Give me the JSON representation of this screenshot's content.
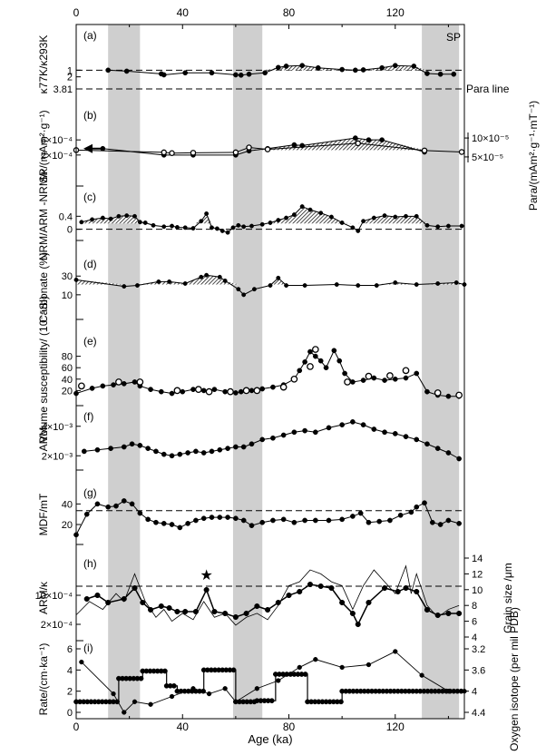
{
  "figure": {
    "x_axis_label": "Age (ka)",
    "x_ticks": [
      "0",
      "40",
      "80",
      "120"
    ],
    "x_range": [
      0,
      146
    ]
  },
  "shaded_intervals": [
    [
      12,
      24
    ],
    [
      59,
      70
    ],
    [
      130,
      144
    ]
  ],
  "chart_data": [
    {
      "id": "a",
      "type": "line",
      "panel_label": "(a)",
      "ylabel": "κ77K/κ293K",
      "yticks": [
        "1",
        "2"
      ],
      "ylim": [
        0.0,
        3.0
      ],
      "y_inverted": true,
      "corner_label": "SP",
      "reference_lines": [
        {
          "value": 1.0,
          "style": "dashed"
        }
      ],
      "extra_tick": {
        "label": "3.81",
        "value": 3.81,
        "note": "Para line"
      },
      "x": [
        12,
        19,
        32,
        33,
        41,
        51,
        60,
        62,
        65,
        71,
        76,
        79,
        85,
        91,
        100,
        105,
        108,
        115,
        120,
        127,
        132,
        137,
        142
      ],
      "values": [
        1.0,
        1.15,
        1.55,
        1.7,
        1.4,
        1.4,
        1.7,
        1.75,
        1.6,
        1.4,
        0.6,
        0.4,
        0.3,
        0.65,
        0.9,
        1.0,
        0.95,
        0.65,
        0.3,
        0.4,
        1.5,
        1.6,
        1.6
      ]
    },
    {
      "id": "b",
      "type": "line",
      "panel_label": "(b)",
      "ylabel": "SP/(mAm²·g⁻¹)",
      "yticks": [
        "6×10⁻⁴",
        "2×10⁻⁴"
      ],
      "ylim": [
        0.0001,
        0.0007
      ],
      "right_ylabel": "Para/(mAm²·g⁻¹·mT⁻¹)",
      "right_yticks": [
        "10×10⁻⁵",
        "5×10⁻⁵"
      ],
      "right_ylim": [
        4.5e-05,
        0.000105
      ],
      "series": [
        {
          "name": "SP",
          "x": [
            10,
            33,
            44,
            60,
            65,
            72,
            82,
            85,
            105,
            110,
            115,
            131
          ],
          "values": [
            0.00037,
            0.0002,
            0.0002,
            0.0002,
            0.00031,
            0.00037,
            0.00047,
            0.00045,
            0.00065,
            0.0006,
            0.0006,
            0.00028
          ]
        },
        {
          "name": "Para",
          "x": [
            0,
            33,
            36,
            44,
            60,
            65,
            72,
            106,
            131,
            145
          ],
          "values": [
            6.8e-05,
            6.2e-05,
            6e-05,
            6.1e-05,
            6.2e-05,
            7.5e-05,
            7e-05,
            8.6e-05,
            6.7e-05,
            6.3e-05
          ]
        }
      ]
    },
    {
      "id": "c",
      "type": "line",
      "panel_label": "(c)",
      "ylabel": "NRM/ARM -NRM/κ",
      "yticks": [
        "0.4",
        "0"
      ],
      "ylim": [
        -0.15,
        0.8
      ],
      "reference_lines": [
        {
          "value": 0.0,
          "style": "dashed"
        }
      ],
      "x": [
        2,
        6,
        10,
        13,
        16,
        19,
        22,
        24,
        26,
        29,
        33,
        36,
        38,
        41,
        44,
        47,
        49,
        51,
        53,
        55,
        57,
        59,
        61,
        63,
        66,
        70,
        73,
        76,
        79,
        82,
        85,
        88,
        92,
        96,
        100,
        104,
        106,
        108,
        112,
        116,
        120,
        124,
        128,
        132,
        136,
        140,
        145
      ],
      "values": [
        0.22,
        0.3,
        0.35,
        0.32,
        0.4,
        0.42,
        0.4,
        0.22,
        0.2,
        0.12,
        0.08,
        0.1,
        0.06,
        0.05,
        0.03,
        0.25,
        0.48,
        0.05,
        0.02,
        -0.05,
        -0.1,
        0.05,
        0.12,
        0.08,
        0.1,
        0.15,
        0.2,
        0.28,
        0.35,
        0.45,
        0.7,
        0.6,
        0.5,
        0.38,
        0.2,
        0.05,
        -0.05,
        0.25,
        0.35,
        0.42,
        0.38,
        0.4,
        0.4,
        0.12,
        0.08,
        0.1,
        0.1
      ]
    },
    {
      "id": "d",
      "type": "line",
      "panel_label": "(d)",
      "ylabel": "Carbonate (%)",
      "yticks": [
        "30",
        "10"
      ],
      "ylim": [
        5,
        38
      ],
      "x": [
        0,
        18,
        23,
        31,
        35,
        41,
        47,
        49,
        54,
        56,
        61,
        63,
        67,
        73,
        76,
        79,
        86,
        98,
        106,
        113,
        120,
        128,
        136,
        143,
        146
      ],
      "values": [
        26,
        19,
        20,
        24,
        24,
        22,
        29,
        31,
        29,
        25,
        16,
        10,
        16,
        20,
        28,
        20,
        20,
        21,
        20,
        20,
        23,
        21,
        22,
        23,
        21
      ]
    },
    {
      "id": "e",
      "type": "line",
      "panel_label": "(e)",
      "ylabel": "Volume susceptibility/ (10⁻⁵SI)",
      "yticks": [
        "20",
        "40",
        "60",
        "80"
      ],
      "ylim": [
        0,
        100
      ],
      "series": [
        {
          "name": "filled",
          "x": [
            0,
            6,
            10,
            14,
            18,
            22,
            24,
            28,
            32,
            36,
            40,
            44,
            48,
            52,
            56,
            60,
            62,
            66,
            70,
            74,
            78,
            82,
            84,
            86,
            88,
            90,
            92,
            94,
            97,
            99,
            101,
            104,
            108,
            112,
            116,
            120,
            124,
            128,
            132,
            136,
            140,
            144
          ],
          "values": [
            15,
            24,
            28,
            30,
            32,
            35,
            28,
            22,
            18,
            15,
            18,
            22,
            20,
            22,
            18,
            16,
            18,
            20,
            23,
            26,
            30,
            40,
            55,
            70,
            88,
            80,
            72,
            60,
            90,
            72,
            50,
            35,
            38,
            42,
            38,
            40,
            42,
            50,
            18,
            12,
            10,
            10
          ]
        },
        {
          "name": "open",
          "x": [
            2,
            16,
            24,
            38,
            46,
            50,
            58,
            64,
            68,
            78,
            82,
            88,
            90,
            102,
            110,
            118,
            124,
            136,
            144
          ],
          "values": [
            28,
            35,
            35,
            20,
            22,
            18,
            18,
            20,
            20,
            26,
            40,
            62,
            92,
            35,
            45,
            46,
            55,
            16,
            12
          ]
        }
      ]
    },
    {
      "id": "f",
      "type": "line",
      "panel_label": "(f)",
      "ylabel": "ARM",
      "yticks": [
        "4×10⁻³",
        "2×10⁻³"
      ],
      "ylim": [
        0.0014,
        0.0046
      ],
      "x": [
        3,
        8,
        13,
        18,
        21,
        24,
        27,
        30,
        33,
        36,
        39,
        42,
        45,
        48,
        51,
        54,
        57,
        60,
        63,
        66,
        70,
        74,
        78,
        82,
        86,
        90,
        95,
        100,
        104,
        108,
        112,
        116,
        120,
        124,
        128,
        132,
        136,
        140,
        144
      ],
      "values": [
        0.0023,
        0.0024,
        0.0025,
        0.0026,
        0.0028,
        0.0027,
        0.0025,
        0.0023,
        0.0021,
        0.002,
        0.0021,
        0.0022,
        0.0023,
        0.0022,
        0.0023,
        0.0024,
        0.0025,
        0.0026,
        0.0026,
        0.0028,
        0.0031,
        0.0032,
        0.0034,
        0.0036,
        0.0037,
        0.0036,
        0.0039,
        0.0041,
        0.0043,
        0.0041,
        0.0038,
        0.0036,
        0.0035,
        0.0033,
        0.0031,
        0.0028,
        0.0025,
        0.0022,
        0.0018
      ]
    },
    {
      "id": "g",
      "type": "line",
      "panel_label": "(g)",
      "ylabel": "MDF/mT",
      "yticks": [
        "20",
        "40"
      ],
      "ylim": [
        5,
        50
      ],
      "reference_lines": [
        {
          "value": 33.5,
          "style": "dashed"
        }
      ],
      "x": [
        0,
        4,
        8,
        12,
        15,
        18,
        21,
        24,
        27,
        30,
        33,
        36,
        39,
        42,
        45,
        48,
        51,
        54,
        57,
        60,
        63,
        66,
        70,
        74,
        78,
        82,
        86,
        90,
        95,
        100,
        104,
        107,
        110,
        114,
        118,
        122,
        126,
        128,
        131,
        134,
        137,
        140,
        144
      ],
      "values": [
        10,
        30,
        40,
        37,
        38,
        43,
        40,
        31,
        25,
        22,
        21,
        20,
        17,
        21,
        24,
        26,
        27,
        27,
        27,
        26,
        24,
        19,
        22,
        24,
        25,
        22,
        24,
        24,
        24,
        25,
        28,
        31,
        22,
        23,
        24,
        29,
        32,
        37,
        41,
        22,
        20,
        24,
        21
      ]
    },
    {
      "id": "h",
      "type": "line",
      "panel_label": "(h)",
      "ylabel": "ARM/κ",
      "yticks": [
        "10×10⁻⁴",
        "2×10⁻⁴"
      ],
      "ylim": [
        -0.0001,
        0.0017
      ],
      "right_ylabel": "Grain size /μm",
      "right_yticks": [
        "4",
        "6",
        "8",
        "10",
        "12",
        "14"
      ],
      "right_ylim": [
        4,
        14
      ],
      "reference_lines": [
        {
          "value": 0.00125,
          "style": "dashed"
        }
      ],
      "marker_note": {
        "x": 49,
        "symbol": "star"
      },
      "series": [
        {
          "name": "ARM/κ",
          "x": [
            4,
            8,
            12,
            18,
            22,
            25,
            28,
            32,
            35,
            38,
            41,
            45,
            49,
            52,
            56,
            60,
            64,
            68,
            72,
            76,
            80,
            84,
            88,
            92,
            96,
            100,
            104,
            106,
            110,
            116,
            121,
            124,
            128,
            132,
            136,
            140,
            144
          ],
          "values": [
            0.0009,
            0.001,
            0.0008,
            0.0009,
            0.0012,
            0.0008,
            0.0006,
            0.0007,
            0.00065,
            0.00055,
            0.00055,
            0.00055,
            0.00115,
            0.00055,
            0.0005,
            0.0004,
            0.0005,
            0.0007,
            0.0006,
            0.0008,
            0.001,
            0.0011,
            0.0013,
            0.00125,
            0.0012,
            0.0008,
            0.0005,
            0.0002,
            0.0008,
            0.0012,
            0.0011,
            0.0012,
            0.0011,
            0.0006,
            0.00045,
            0.0005,
            0.0005
          ]
        },
        {
          "name": "Grain size",
          "x": [
            0,
            5,
            10,
            15,
            18,
            22,
            26,
            30,
            33,
            36,
            40,
            44,
            48,
            52,
            56,
            60,
            64,
            68,
            72,
            76,
            80,
            84,
            88,
            92,
            96,
            100,
            104,
            108,
            112,
            116,
            120,
            124,
            126,
            128,
            132,
            136,
            140,
            144
          ],
          "values": [
            6.8,
            8.5,
            7.5,
            9.5,
            8.5,
            12,
            8.5,
            6.5,
            7.5,
            6,
            7,
            6.2,
            8.5,
            6.5,
            7,
            5.5,
            6.5,
            7,
            6.2,
            8,
            10.5,
            11,
            12.5,
            12,
            11,
            10.5,
            7.5,
            10.5,
            12.5,
            11,
            9.5,
            13,
            9.5,
            12,
            8,
            6.5,
            7.5,
            8
          ]
        }
      ]
    },
    {
      "id": "i",
      "type": "line",
      "panel_label": "(i)",
      "ylabel": "Rate/(cm·ka⁻¹)",
      "yticks": [
        "0",
        "2",
        "4",
        "6"
      ],
      "ylim": [
        0,
        6
      ],
      "right_ylabel": "Oxygen isotope (per mil PDB)",
      "right_yticks": [
        "3.2",
        "3.6",
        "4",
        "4.4"
      ],
      "right_ylim": [
        4.4,
        3.2
      ],
      "right_inverted": true,
      "series": [
        {
          "name": "Rate",
          "type": "step",
          "x": [
            0,
            16,
            16,
            25,
            25,
            34,
            34,
            38,
            38,
            48,
            48,
            60,
            60,
            68,
            68,
            75,
            75,
            87,
            87,
            100,
            100,
            146
          ],
          "values": [
            1,
            1,
            3.2,
            3.2,
            3.9,
            3.9,
            2.5,
            2.5,
            2,
            2,
            4,
            4,
            1,
            1,
            1.1,
            1.1,
            3.6,
            3.6,
            1,
            1,
            2,
            2
          ]
        },
        {
          "name": "Oxygen isotope",
          "x": [
            2,
            14,
            18,
            22,
            28,
            36,
            44,
            50,
            56,
            60,
            68,
            76,
            84,
            90,
            100,
            110,
            120,
            130,
            140,
            146
          ],
          "values": [
            3.45,
            4.05,
            4.4,
            4.2,
            4.25,
            4.1,
            3.95,
            4.05,
            3.95,
            4.2,
            3.95,
            3.8,
            3.55,
            3.4,
            3.55,
            3.5,
            3.25,
            3.7,
            4,
            4
          ]
        }
      ]
    }
  ]
}
